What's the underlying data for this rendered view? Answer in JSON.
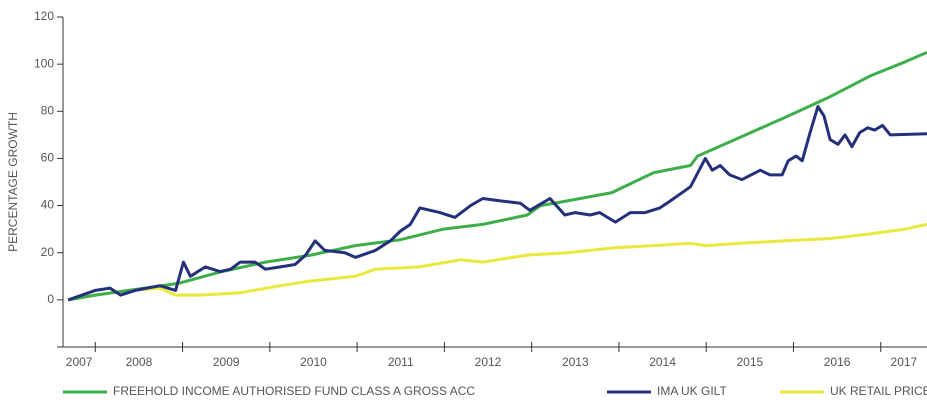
{
  "chart_data": {
    "type": "line",
    "ylabel": "PERCENTAGE GROWTH",
    "xlim": [
      2007.63,
      2017.53
    ],
    "xticks": [
      2008,
      2009,
      2010,
      2011,
      2012,
      2013,
      2014,
      2015,
      2016,
      2017
    ],
    "x_labels": [
      "2007",
      "2008",
      "2009",
      "2010",
      "2011",
      "2012",
      "2013",
      "2014",
      "2015",
      "2016",
      "2017"
    ],
    "ylim": [
      -20,
      120
    ],
    "yticks": [
      0,
      20,
      40,
      60,
      80,
      100,
      120
    ],
    "legend": "bottom",
    "series": [
      {
        "name": "FREEHOLD INCOME AUTHORISED FUND CLASS A GROSS ACC",
        "color": "#3dae4a",
        "x": [
          2007.69,
          2008.0,
          2008.95,
          2009.45,
          2009.95,
          2010.47,
          2010.98,
          2011.49,
          2011.99,
          2012.44,
          2012.95,
          2013.1,
          2013.41,
          2013.92,
          2014.4,
          2014.82,
          2014.9,
          2015.39,
          2015.88,
          2016.41,
          2016.88,
          2017.28,
          2017.53
        ],
        "values": [
          0,
          2,
          7,
          12,
          16,
          19,
          23,
          25.5,
          30,
          32,
          36,
          40,
          42,
          45.5,
          54,
          57,
          61,
          69,
          77,
          86,
          95,
          101,
          105
        ]
      },
      {
        "name": "IMA UK GILT",
        "color": "#24307a",
        "x": [
          2007.69,
          2008.0,
          2008.17,
          2008.29,
          2008.46,
          2008.74,
          2008.92,
          2009.01,
          2009.09,
          2009.26,
          2009.43,
          2009.55,
          2009.66,
          2009.83,
          2009.95,
          2010.12,
          2010.29,
          2010.41,
          2010.52,
          2010.63,
          2010.86,
          2010.98,
          2011.21,
          2011.38,
          2011.49,
          2011.61,
          2011.72,
          2011.95,
          2012.12,
          2012.3,
          2012.44,
          2012.64,
          2012.87,
          2012.98,
          2013.21,
          2013.38,
          2013.5,
          2013.67,
          2013.78,
          2013.96,
          2014.13,
          2014.3,
          2014.47,
          2014.59,
          2014.82,
          2014.99,
          2015.07,
          2015.16,
          2015.27,
          2015.41,
          2015.62,
          2015.73,
          2015.87,
          2015.94,
          2016.03,
          2016.1,
          2016.19,
          2016.28,
          2016.35,
          2016.42,
          2016.51,
          2016.59,
          2016.67,
          2016.76,
          2016.85,
          2016.93,
          2017.02,
          2017.11,
          2017.53
        ],
        "values": [
          0,
          4,
          5,
          2,
          4,
          6,
          4,
          16,
          10,
          14,
          12,
          13,
          16,
          16,
          13,
          14,
          15,
          19,
          25,
          21,
          20,
          18,
          21,
          25,
          29,
          32,
          39,
          37,
          35,
          40,
          43,
          42,
          41,
          38,
          43,
          36,
          37,
          36,
          37,
          33,
          37,
          37,
          39,
          42,
          48,
          60,
          55,
          57,
          53,
          51,
          55,
          53,
          53,
          59,
          61,
          59,
          71,
          82,
          78,
          68,
          66,
          70,
          65,
          71,
          73,
          72,
          74,
          70,
          70.5
        ]
      },
      {
        "name": "UK RETAIL PRICE INDEX",
        "color": "#e9e83c",
        "x": [
          2007.69,
          2008.0,
          2008.4,
          2008.74,
          2008.92,
          2009.2,
          2009.66,
          2010.12,
          2010.47,
          2010.98,
          2011.21,
          2011.72,
          2012.18,
          2012.44,
          2012.95,
          2013.41,
          2013.92,
          2014.4,
          2014.82,
          2014.99,
          2015.39,
          2015.88,
          2016.41,
          2016.88,
          2017.28,
          2017.53
        ],
        "values": [
          0,
          2,
          4,
          5,
          2,
          2,
          3,
          6,
          8,
          10,
          13,
          14,
          17,
          16,
          19,
          20,
          22,
          23,
          24,
          23,
          24,
          25,
          26,
          28,
          30,
          32
        ]
      }
    ]
  }
}
